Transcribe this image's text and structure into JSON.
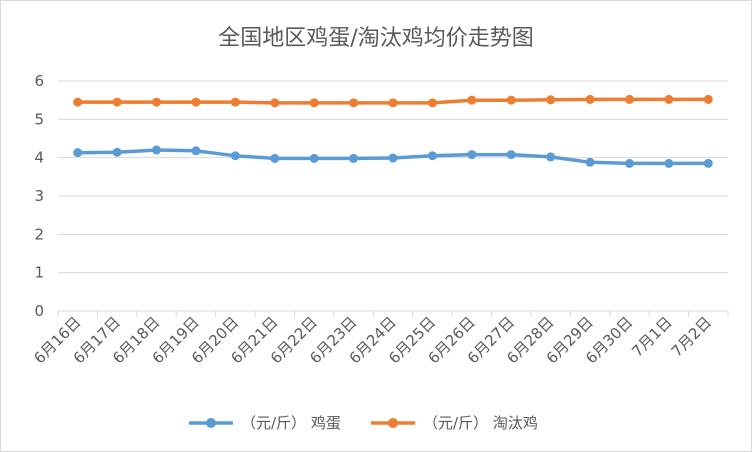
{
  "chart_data": {
    "type": "line",
    "title": "全国地区鸡蛋/淘汰鸡均价走势图",
    "categories": [
      "6月16日",
      "6月17日",
      "6月18日",
      "6月19日",
      "6月20日",
      "6月21日",
      "6月22日",
      "6月23日",
      "6月24日",
      "6月25日",
      "6月26日",
      "6月27日",
      "6月28日",
      "6月29日",
      "6月30日",
      "7月1日",
      "7月2日"
    ],
    "y_ticks": [
      "0",
      "1",
      "2",
      "3",
      "4",
      "5",
      "6"
    ],
    "ylim": [
      0,
      6
    ],
    "grid": true,
    "legend_position": "bottom",
    "series": [
      {
        "name": "（元/斤） 鸡蛋",
        "color": "#5b9bd5",
        "values": [
          4.13,
          4.14,
          4.2,
          4.18,
          4.05,
          3.98,
          3.98,
          3.98,
          3.99,
          4.05,
          4.08,
          4.08,
          4.02,
          3.88,
          3.85,
          3.85,
          3.85
        ]
      },
      {
        "name": "（元/斤） 淘汰鸡",
        "color": "#ed7d31",
        "values": [
          5.45,
          5.45,
          5.45,
          5.45,
          5.45,
          5.43,
          5.43,
          5.43,
          5.43,
          5.43,
          5.5,
          5.5,
          5.51,
          5.52,
          5.52,
          5.52,
          5.52
        ]
      }
    ]
  }
}
